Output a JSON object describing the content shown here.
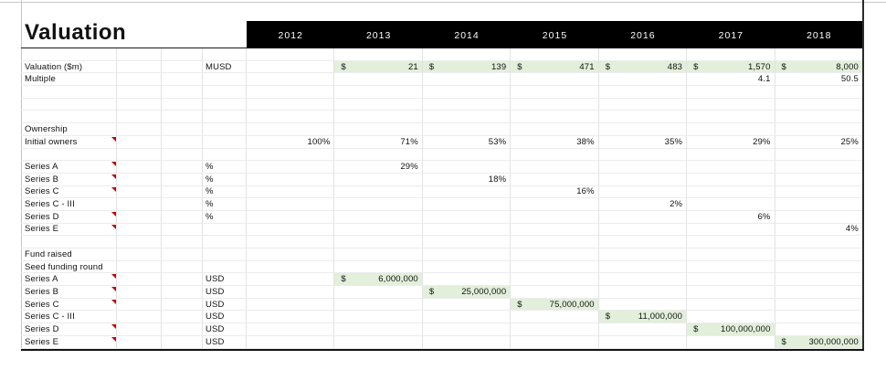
{
  "app": {
    "title": "Valuation"
  },
  "header": {
    "years": [
      "2012",
      "2013",
      "2014",
      "2015",
      "2016",
      "2017",
      "2018"
    ]
  },
  "colors": {
    "header_bg": "#000000",
    "header_text": "#ffffff",
    "accent_fill": "#e2efda",
    "comment_indicator": "#c00000"
  },
  "table": {
    "currency_symbol": "$",
    "rows": [
      {
        "label": "",
        "unit": "",
        "comment": false,
        "cells": [
          null,
          null,
          null,
          null,
          null,
          null,
          null
        ]
      },
      {
        "label": "Valuation ($m)",
        "unit": "MUSD",
        "comment": false,
        "cells": [
          null,
          {
            "type": "money",
            "value": "21"
          },
          {
            "type": "money",
            "value": "139"
          },
          {
            "type": "money",
            "value": "471"
          },
          {
            "type": "money",
            "value": "483"
          },
          {
            "type": "money",
            "value": "1,570"
          },
          {
            "type": "money",
            "value": "8,000"
          }
        ]
      },
      {
        "label": "Multiple",
        "unit": "",
        "comment": false,
        "cells": [
          null,
          null,
          null,
          null,
          null,
          {
            "type": "number",
            "value": "4.1"
          },
          {
            "type": "number",
            "value": "50.5"
          }
        ]
      },
      {
        "label": "",
        "unit": "",
        "comment": false,
        "cells": [
          null,
          null,
          null,
          null,
          null,
          null,
          null
        ]
      },
      {
        "label": "",
        "unit": "",
        "comment": false,
        "cells": [
          null,
          null,
          null,
          null,
          null,
          null,
          null
        ]
      },
      {
        "label": "",
        "unit": "",
        "comment": false,
        "cells": [
          null,
          null,
          null,
          null,
          null,
          null,
          null
        ]
      },
      {
        "label": "Ownership",
        "unit": "",
        "comment": false,
        "cells": [
          null,
          null,
          null,
          null,
          null,
          null,
          null
        ]
      },
      {
        "label": "Initial owners",
        "unit": "",
        "comment": true,
        "cells": [
          {
            "type": "number",
            "value": "100%"
          },
          {
            "type": "number",
            "value": "71%"
          },
          {
            "type": "number",
            "value": "53%"
          },
          {
            "type": "number",
            "value": "38%"
          },
          {
            "type": "number",
            "value": "35%"
          },
          {
            "type": "number",
            "value": "29%"
          },
          {
            "type": "number",
            "value": "25%"
          }
        ]
      },
      {
        "label": "",
        "unit": "",
        "comment": false,
        "cells": [
          null,
          null,
          null,
          null,
          null,
          null,
          null
        ]
      },
      {
        "label": "Series A",
        "unit": "%",
        "comment": true,
        "cells": [
          null,
          {
            "type": "number",
            "value": "29%"
          },
          null,
          null,
          null,
          null,
          null
        ]
      },
      {
        "label": "Series B",
        "unit": "%",
        "comment": true,
        "cells": [
          null,
          null,
          {
            "type": "number",
            "value": "18%"
          },
          null,
          null,
          null,
          null
        ]
      },
      {
        "label": "Series C",
        "unit": "%",
        "comment": true,
        "cells": [
          null,
          null,
          null,
          {
            "type": "number",
            "value": "16%"
          },
          null,
          null,
          null
        ]
      },
      {
        "label": "Series C - III",
        "unit": "%",
        "comment": false,
        "cells": [
          null,
          null,
          null,
          null,
          {
            "type": "number",
            "value": "2%"
          },
          null,
          null
        ]
      },
      {
        "label": "Series D",
        "unit": "%",
        "comment": true,
        "cells": [
          null,
          null,
          null,
          null,
          null,
          {
            "type": "number",
            "value": "6%"
          },
          null
        ]
      },
      {
        "label": "Series E",
        "unit": "",
        "comment": true,
        "cells": [
          null,
          null,
          null,
          null,
          null,
          null,
          {
            "type": "number",
            "value": "4%"
          }
        ]
      },
      {
        "label": "",
        "unit": "",
        "comment": false,
        "cells": [
          null,
          null,
          null,
          null,
          null,
          null,
          null
        ]
      },
      {
        "label": "Fund raised",
        "unit": "",
        "comment": false,
        "cells": [
          null,
          null,
          null,
          null,
          null,
          null,
          null
        ]
      },
      {
        "label": "Seed funding round",
        "unit": "",
        "comment": false,
        "cells": [
          null,
          null,
          null,
          null,
          null,
          null,
          null
        ]
      },
      {
        "label": "Series A",
        "unit": "USD",
        "comment": true,
        "cells": [
          null,
          {
            "type": "money",
            "value": "6,000,000"
          },
          null,
          null,
          null,
          null,
          null
        ]
      },
      {
        "label": "Series B",
        "unit": "USD",
        "comment": true,
        "cells": [
          null,
          null,
          {
            "type": "money",
            "value": "25,000,000"
          },
          null,
          null,
          null,
          null
        ]
      },
      {
        "label": "Series C",
        "unit": "USD",
        "comment": true,
        "cells": [
          null,
          null,
          null,
          {
            "type": "money",
            "value": "75,000,000"
          },
          null,
          null,
          null
        ]
      },
      {
        "label": "Series C - III",
        "unit": "USD",
        "comment": false,
        "cells": [
          null,
          null,
          null,
          null,
          {
            "type": "money",
            "value": "11,000,000"
          },
          null,
          null
        ]
      },
      {
        "label": "Series D",
        "unit": "USD",
        "comment": true,
        "cells": [
          null,
          null,
          null,
          null,
          null,
          {
            "type": "money",
            "value": "100,000,000"
          },
          null
        ]
      },
      {
        "label": "Series E",
        "unit": "USD",
        "comment": true,
        "cells": [
          null,
          null,
          null,
          null,
          null,
          null,
          {
            "type": "money",
            "value": "300,000,000"
          }
        ]
      }
    ]
  }
}
